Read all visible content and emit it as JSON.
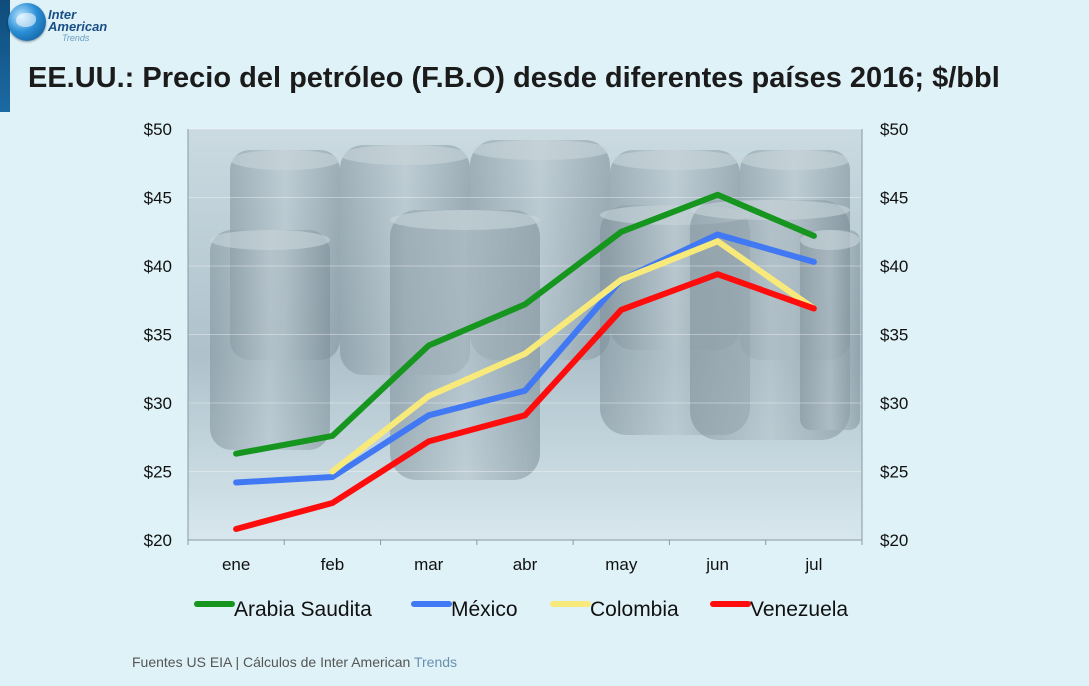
{
  "logo": {
    "line1": "Inter",
    "line2": "American",
    "line3": "Trends"
  },
  "title": "EE.UU.: Precio del petróleo (F.B.O) desde diferentes países 2016; $/bbl",
  "footer": {
    "prefix": "Fuentes US EIA | Cálculos de  Inter American ",
    "brand": "Trends"
  },
  "chart_data": {
    "type": "line",
    "categories": [
      "ene",
      "feb",
      "mar",
      "abr",
      "may",
      "jun",
      "jul"
    ],
    "ylim": [
      20,
      50
    ],
    "yticks": [
      "$20",
      "$25",
      "$30",
      "$35",
      "$40",
      "$45",
      "$50"
    ],
    "ytick_values": [
      20,
      25,
      30,
      35,
      40,
      45,
      50
    ],
    "legend_position": "bottom",
    "grid": true,
    "series": [
      {
        "name": "Arabia Saudita",
        "color": "#16961f",
        "values": [
          26.3,
          27.6,
          34.2,
          37.2,
          42.5,
          45.2,
          42.2
        ]
      },
      {
        "name": "México",
        "color": "#4178f3",
        "values": [
          24.2,
          24.6,
          29.1,
          30.9,
          39.0,
          42.3,
          40.3
        ]
      },
      {
        "name": "Colombia",
        "color": "#f7ea7a",
        "values": [
          null,
          25.0,
          30.5,
          33.6,
          39.0,
          41.8,
          36.9
        ]
      },
      {
        "name": "Venezuela",
        "color": "#ff0d0d",
        "values": [
          20.8,
          22.7,
          27.2,
          29.1,
          36.8,
          39.4,
          36.9
        ]
      }
    ]
  }
}
